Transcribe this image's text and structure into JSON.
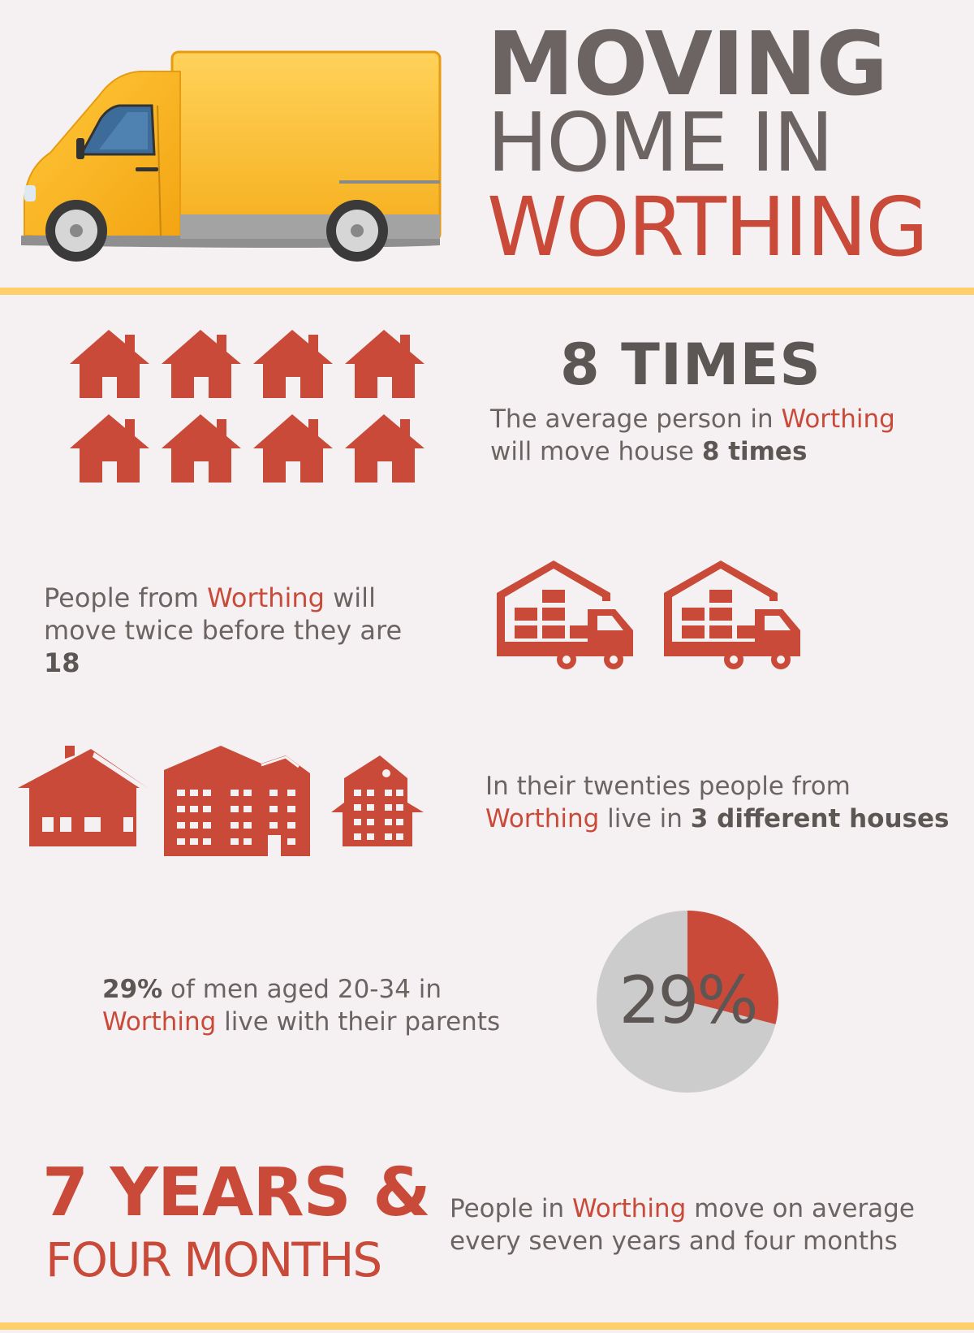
{
  "header": {
    "title_line1": "MOVING",
    "title_line2": "HOME IN",
    "title_line3": "WORTHING",
    "van_icon": "moving-van-icon"
  },
  "colors": {
    "accent_red": "#c94a38",
    "text_grey": "#6b6462",
    "yellow": "#fecf6a",
    "background": "#f5f1f2",
    "pie_grey": "#cccccc"
  },
  "stats": {
    "times": {
      "heading": "8 TIMES",
      "text_before": "The average person in ",
      "town": "Worthing",
      "text_mid": " will move house ",
      "bold": "8 times",
      "icon": "house-icon",
      "icon_count": 8
    },
    "before18": {
      "text_before": "People from ",
      "town": "Worthing",
      "text_mid": " will move twice before they are ",
      "bold": "18",
      "icon": "warehouse-truck-icon",
      "icon_count": 2
    },
    "twenties": {
      "text_before": "In their twenties people from ",
      "town": "Worthing",
      "text_mid": " live in ",
      "bold": "3 different houses",
      "icon": "buildings-icon"
    },
    "parents": {
      "bold": "29%",
      "text_mid": " of men aged 20-34 in ",
      "town": "Worthing",
      "text_after": " live with their parents",
      "pie_label": "29%",
      "pie_value": 0.29
    },
    "years": {
      "heading_line1": "7 YEARS &",
      "heading_line2": "FOUR MONTHS",
      "text_before": "People in ",
      "town": "Worthing",
      "text_after": " move on average every seven years and four months"
    }
  }
}
